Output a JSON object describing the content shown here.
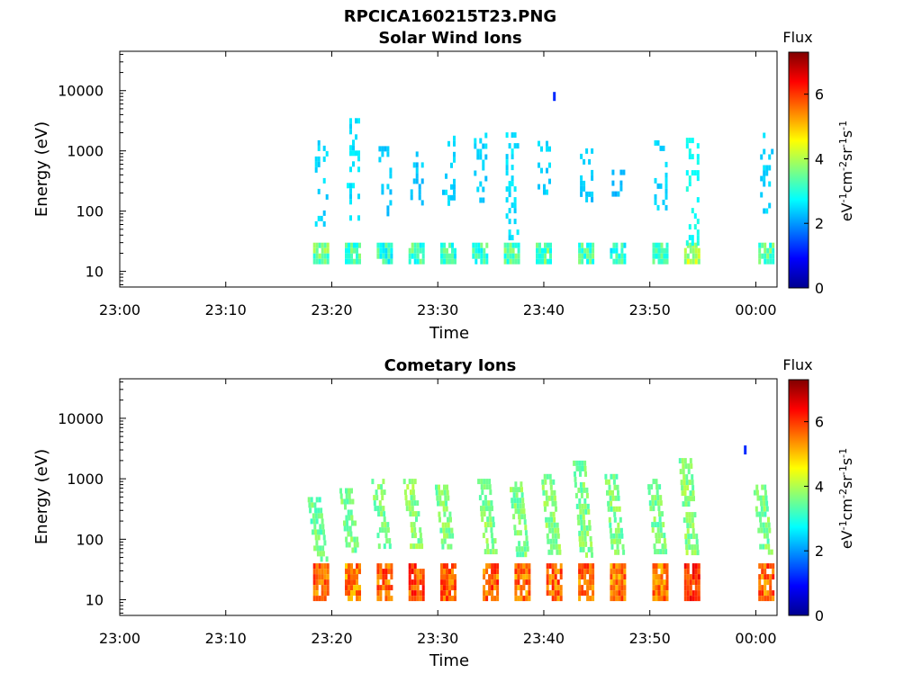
{
  "figure": {
    "title": "RPCICA160215T23.PNG"
  },
  "colors": {
    "colormap": "jet",
    "axis": "#000000",
    "background": "#ffffff"
  },
  "chart_data": [
    {
      "type": "heatmap",
      "title": "Solar Wind Ions",
      "xlabel": "Time",
      "ylabel": "Energy (eV)",
      "xscale": "time",
      "yscale": "log",
      "xlim": [
        "23:00",
        "00:02"
      ],
      "ylim": [
        5.5,
        45000
      ],
      "x_ticks": [
        "23:00",
        "23:10",
        "23:20",
        "23:30",
        "23:40",
        "23:50",
        "00:00"
      ],
      "y_ticks": [
        10,
        100,
        1000,
        10000
      ],
      "y_tick_labels": [
        "10",
        "100",
        "1000",
        "10000"
      ],
      "colorbar": {
        "label": "Flux",
        "unit_label": "eV-1cm-2sr-1s-1",
        "range": [
          0,
          7.3
        ],
        "ticks": [
          0,
          2,
          4,
          6
        ]
      },
      "grid": false,
      "bursts": [
        {
          "time": "23:19",
          "low_energy": [
            15,
            30
          ],
          "low_flux": 3.4,
          "high_energy": [
            60,
            1500
          ],
          "high_flux": 2.0
        },
        {
          "time": "23:22",
          "low_energy": [
            15,
            30
          ],
          "low_flux": 3.2,
          "high_energy": [
            80,
            3500
          ],
          "high_flux": 2.1
        },
        {
          "time": "23:25",
          "low_energy": [
            15,
            30
          ],
          "low_flux": 3.0,
          "high_energy": [
            100,
            1200
          ],
          "high_flux": 1.9
        },
        {
          "time": "23:28",
          "low_energy": [
            15,
            30
          ],
          "low_flux": 3.1,
          "high_energy": [
            150,
            1200
          ],
          "high_flux": 1.9
        },
        {
          "time": "23:31",
          "low_energy": [
            15,
            30
          ],
          "low_flux": 3.0,
          "high_energy": [
            120,
            2200
          ],
          "high_flux": 2.0
        },
        {
          "time": "23:34",
          "low_energy": [
            15,
            30
          ],
          "low_flux": 3.1,
          "high_energy": [
            150,
            2000
          ],
          "high_flux": 2.0
        },
        {
          "time": "23:37",
          "low_energy": [
            15,
            30
          ],
          "low_flux": 3.3,
          "high_energy": [
            40,
            2500
          ],
          "high_flux": 2.1
        },
        {
          "time": "23:40",
          "low_energy": [
            15,
            30
          ],
          "low_flux": 3.2,
          "high_energy": [
            100,
            1800
          ],
          "high_flux": 2.0
        },
        {
          "time": "23:44",
          "low_energy": [
            15,
            30
          ],
          "low_flux": 3.1,
          "high_energy": [
            150,
            1100
          ],
          "high_flux": 1.9
        },
        {
          "time": "23:47",
          "low_energy": [
            15,
            30
          ],
          "low_flux": 3.0,
          "high_energy": [
            200,
            600
          ],
          "high_flux": 1.8
        },
        {
          "time": "23:51",
          "low_energy": [
            15,
            30
          ],
          "low_flux": 3.1,
          "high_energy": [
            100,
            1500
          ],
          "high_flux": 2.0
        },
        {
          "time": "23:54",
          "low_energy": [
            15,
            30
          ],
          "low_flux": 3.9,
          "high_energy": [
            30,
            2500
          ],
          "high_flux": 2.4
        },
        {
          "time": "00:01",
          "low_energy": [
            15,
            30
          ],
          "low_flux": 3.2,
          "high_energy": [
            100,
            2000
          ],
          "high_flux": 2.0
        }
      ],
      "isolated_points": [
        {
          "time": "23:41",
          "energy": 8000,
          "flux": 1.2
        }
      ]
    },
    {
      "type": "heatmap",
      "title": "Cometary Ions",
      "xlabel": "Time",
      "ylabel": "Energy (eV)",
      "xscale": "time",
      "yscale": "log",
      "xlim": [
        "23:00",
        "00:02"
      ],
      "ylim": [
        5.5,
        45000
      ],
      "x_ticks": [
        "23:00",
        "23:10",
        "23:20",
        "23:30",
        "23:40",
        "23:50",
        "00:00"
      ],
      "y_ticks": [
        10,
        100,
        1000,
        10000
      ],
      "y_tick_labels": [
        "10",
        "100",
        "1000",
        "10000"
      ],
      "colorbar": {
        "label": "Flux",
        "unit_label": "eV-1cm-2sr-1s-1",
        "range": [
          0,
          7.3
        ],
        "ticks": [
          0,
          2,
          4,
          6
        ]
      },
      "grid": false,
      "bursts": [
        {
          "time": "23:19",
          "low_energy": [
            10,
            40
          ],
          "low_flux": 5.6,
          "high_energy": [
            50,
            500
          ],
          "high_flux": 3.3
        },
        {
          "time": "23:22",
          "low_energy": [
            10,
            40
          ],
          "low_flux": 5.4,
          "high_energy": [
            60,
            700
          ],
          "high_flux": 3.4
        },
        {
          "time": "23:25",
          "low_energy": [
            10,
            40
          ],
          "low_flux": 5.6,
          "high_energy": [
            70,
            1000
          ],
          "high_flux": 3.4
        },
        {
          "time": "23:28",
          "low_energy": [
            10,
            40
          ],
          "low_flux": 5.8,
          "high_energy": [
            70,
            1000
          ],
          "high_flux": 3.5
        },
        {
          "time": "23:31",
          "low_energy": [
            10,
            40
          ],
          "low_flux": 5.7,
          "high_energy": [
            70,
            800
          ],
          "high_flux": 3.4
        },
        {
          "time": "23:35",
          "low_energy": [
            10,
            40
          ],
          "low_flux": 5.6,
          "high_energy": [
            60,
            1000
          ],
          "high_flux": 3.5
        },
        {
          "time": "23:38",
          "low_energy": [
            10,
            40
          ],
          "low_flux": 5.5,
          "high_energy": [
            60,
            900
          ],
          "high_flux": 3.4
        },
        {
          "time": "23:41",
          "low_energy": [
            10,
            40
          ],
          "low_flux": 5.6,
          "high_energy": [
            60,
            1200
          ],
          "high_flux": 3.5
        },
        {
          "time": "23:44",
          "low_energy": [
            10,
            40
          ],
          "low_flux": 5.5,
          "high_energy": [
            60,
            2000
          ],
          "high_flux": 3.4
        },
        {
          "time": "23:47",
          "low_energy": [
            10,
            40
          ],
          "low_flux": 5.4,
          "high_energy": [
            60,
            1200
          ],
          "high_flux": 3.4
        },
        {
          "time": "23:51",
          "low_energy": [
            10,
            40
          ],
          "low_flux": 5.5,
          "high_energy": [
            60,
            1000
          ],
          "high_flux": 3.4
        },
        {
          "time": "23:54",
          "low_energy": [
            10,
            40
          ],
          "low_flux": 6.0,
          "high_energy": [
            60,
            2200
          ],
          "high_flux": 3.5
        },
        {
          "time": "00:01",
          "low_energy": [
            10,
            40
          ],
          "low_flux": 5.6,
          "high_energy": [
            60,
            800
          ],
          "high_flux": 3.4
        }
      ],
      "isolated_points": [
        {
          "time": "23:59",
          "energy": 3000,
          "flux": 1.2
        }
      ]
    }
  ]
}
